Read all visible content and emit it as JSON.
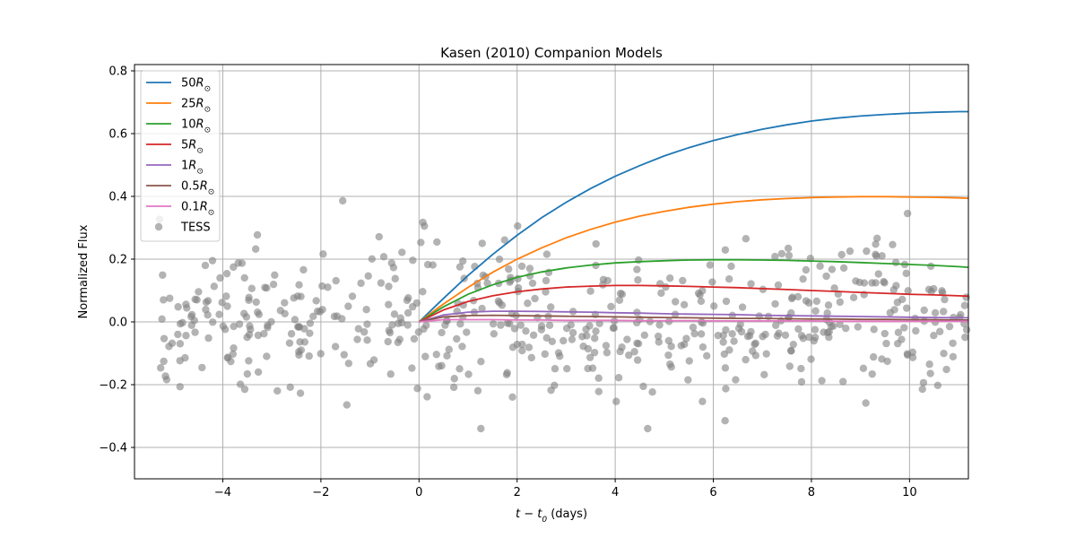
{
  "chart_data": {
    "type": "line",
    "title": "Kasen (2010) Companion Models",
    "xlabel": "t − t",
    "xlabel_sub": "0",
    "xlabel_unit": " (days)",
    "ylabel": "Normalized Flux",
    "xlim": [
      -5.8,
      11.2
    ],
    "ylim": [
      -0.5,
      0.82
    ],
    "x_ticks": [
      -4,
      -2,
      0,
      2,
      4,
      6,
      8,
      10
    ],
    "x_tick_labels": [
      "−4",
      "−2",
      "0",
      "2",
      "4",
      "6",
      "8",
      "10"
    ],
    "y_ticks": [
      -0.4,
      -0.2,
      0.0,
      0.2,
      0.4,
      0.6,
      0.8
    ],
    "y_tick_labels": [
      "−0.4",
      "−0.2",
      "0.0",
      "0.2",
      "0.4",
      "0.6",
      "0.8"
    ],
    "grid": true,
    "legend_position": "top-left",
    "series": [
      {
        "name": "50",
        "unit": "R",
        "sub": "⊙",
        "color": "#1f77b4",
        "x": [
          0,
          0.5,
          1,
          1.5,
          2,
          2.5,
          3,
          3.5,
          4,
          4.5,
          5,
          5.5,
          6,
          6.5,
          7,
          7.5,
          8,
          8.5,
          9,
          9.5,
          10,
          10.5,
          11,
          11.2
        ],
        "y": [
          0,
          0.075,
          0.148,
          0.215,
          0.276,
          0.332,
          0.381,
          0.425,
          0.464,
          0.498,
          0.529,
          0.555,
          0.578,
          0.597,
          0.614,
          0.628,
          0.64,
          0.649,
          0.656,
          0.661,
          0.665,
          0.668,
          0.67,
          0.67
        ]
      },
      {
        "name": "25",
        "unit": "R",
        "sub": "⊙",
        "color": "#ff7f0e",
        "x": [
          0,
          0.5,
          1,
          1.5,
          2,
          2.5,
          3,
          3.5,
          4,
          4.5,
          5,
          5.5,
          6,
          6.5,
          7,
          7.5,
          8,
          8.5,
          9,
          9.5,
          10,
          10.5,
          11,
          11.2
        ],
        "y": [
          0,
          0.057,
          0.11,
          0.158,
          0.2,
          0.236,
          0.268,
          0.295,
          0.318,
          0.337,
          0.352,
          0.365,
          0.375,
          0.383,
          0.389,
          0.393,
          0.396,
          0.398,
          0.399,
          0.399,
          0.398,
          0.397,
          0.395,
          0.394
        ]
      },
      {
        "name": "10",
        "unit": "R",
        "sub": "⊙",
        "color": "#2ca02c",
        "x": [
          0,
          0.5,
          1,
          1.5,
          2,
          2.5,
          3,
          3.5,
          4,
          4.5,
          5,
          5.5,
          6,
          6.5,
          7,
          7.5,
          8,
          8.5,
          9,
          9.5,
          10,
          10.5,
          11,
          11.2
        ],
        "y": [
          0,
          0.048,
          0.088,
          0.118,
          0.142,
          0.159,
          0.172,
          0.181,
          0.188,
          0.192,
          0.195,
          0.197,
          0.198,
          0.198,
          0.197,
          0.196,
          0.194,
          0.192,
          0.189,
          0.186,
          0.183,
          0.18,
          0.176,
          0.174
        ]
      },
      {
        "name": "5",
        "unit": "R",
        "sub": "⊙",
        "color": "#d62728",
        "x": [
          0,
          0.5,
          1,
          1.5,
          2,
          2.5,
          3,
          3.5,
          4,
          4.5,
          5,
          5.5,
          6,
          6.5,
          7,
          7.5,
          8,
          8.5,
          9,
          9.5,
          10,
          10.5,
          11,
          11.2
        ],
        "y": [
          0,
          0.038,
          0.065,
          0.083,
          0.096,
          0.105,
          0.111,
          0.114,
          0.116,
          0.116,
          0.115,
          0.113,
          0.111,
          0.109,
          0.106,
          0.103,
          0.1,
          0.097,
          0.094,
          0.091,
          0.088,
          0.086,
          0.083,
          0.082
        ]
      },
      {
        "name": "1",
        "unit": "R",
        "sub": "⊙",
        "color": "#9467bd",
        "x": [
          0,
          0.5,
          1,
          1.5,
          2,
          2.5,
          3,
          3.5,
          4,
          4.5,
          5,
          5.5,
          6,
          6.5,
          7,
          7.5,
          8,
          8.5,
          9,
          9.5,
          10,
          10.5,
          11,
          11.2
        ],
        "y": [
          0,
          0.022,
          0.031,
          0.034,
          0.034,
          0.033,
          0.032,
          0.031,
          0.029,
          0.028,
          0.026,
          0.025,
          0.024,
          0.023,
          0.021,
          0.02,
          0.019,
          0.018,
          0.017,
          0.016,
          0.015,
          0.014,
          0.013,
          0.013
        ]
      },
      {
        "name": "0.5",
        "unit": "R",
        "sub": "⊙",
        "color": "#8c564b",
        "x": [
          0,
          0.5,
          1,
          1.5,
          2,
          2.5,
          3,
          3.5,
          4,
          4.5,
          5,
          5.5,
          6,
          6.5,
          7,
          7.5,
          8,
          8.5,
          9,
          9.5,
          10,
          10.5,
          11,
          11.2
        ],
        "y": [
          0,
          0.016,
          0.02,
          0.021,
          0.02,
          0.019,
          0.018,
          0.017,
          0.016,
          0.015,
          0.014,
          0.013,
          0.012,
          0.011,
          0.011,
          0.01,
          0.009,
          0.009,
          0.008,
          0.008,
          0.007,
          0.007,
          0.006,
          0.006
        ]
      },
      {
        "name": "0.1",
        "unit": "R",
        "sub": "⊙",
        "color": "#e377c2",
        "x": [
          0,
          0.5,
          1,
          1.5,
          2,
          2.5,
          3,
          3.5,
          4,
          4.5,
          5,
          5.5,
          6,
          6.5,
          7,
          7.5,
          8,
          8.5,
          9,
          9.5,
          10,
          10.5,
          11,
          11.2
        ],
        "y": [
          0,
          0.007,
          0.007,
          0.007,
          0.006,
          0.006,
          0.005,
          0.005,
          0.005,
          0.004,
          0.004,
          0.004,
          0.003,
          0.003,
          0.003,
          0.003,
          0.003,
          0.002,
          0.002,
          0.002,
          0.002,
          0.002,
          0.002,
          0.002
        ]
      }
    ],
    "scatter": {
      "name": "TESS",
      "color": "#808080",
      "alpha": 0.6,
      "x_range": [
        -5.3,
        11.2
      ],
      "count": 560,
      "y_mean": 0.0,
      "y_sd": 0.12,
      "bump": {
        "x_from": 8.6,
        "x_to": 9.8,
        "y_shift": 0.15
      }
    }
  }
}
